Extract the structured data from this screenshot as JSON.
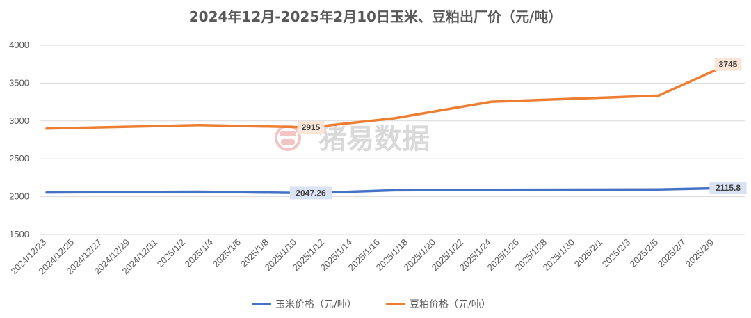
{
  "chart_data": {
    "type": "line",
    "title": "2024年12月-2025年2月10日玉米、豆粕出厂价（元/吨）",
    "xlabel": "",
    "ylabel": "",
    "ylim": [
      1500,
      4000
    ],
    "yticks": [
      1500,
      2000,
      2500,
      3000,
      3500,
      4000
    ],
    "grid": true,
    "legend_position": "bottom",
    "categories": [
      "2024/12/23",
      "2024/12/25",
      "2024/12/27",
      "2024/12/29",
      "2024/12/31",
      "2025/1/2",
      "2025/1/4",
      "2025/1/6",
      "2025/1/8",
      "2025/1/10",
      "2025/1/12",
      "2025/1/14",
      "2025/1/16",
      "2025/1/18",
      "2025/1/20",
      "2025/1/22",
      "2025/1/24",
      "2025/1/26",
      "2025/1/28",
      "2025/1/30",
      "2025/2/1",
      "2025/2/3",
      "2025/2/5",
      "2025/2/7",
      "2025/2/9"
    ],
    "series": [
      {
        "name": "玉米价格（元/吨）",
        "color": "#4472c4",
        "points": [
          {
            "x": "2024/12/23",
            "y": 2055
          },
          {
            "x": "2025/1/3",
            "y": 2065
          },
          {
            "x": "2025/1/11",
            "y": 2047.26
          },
          {
            "x": "2025/1/17",
            "y": 2085
          },
          {
            "x": "2025/1/24",
            "y": 2090
          },
          {
            "x": "2025/2/5",
            "y": 2095
          },
          {
            "x": "2025/2/10",
            "y": 2115.8
          }
        ]
      },
      {
        "name": "豆粕价格（元/吨）",
        "color": "#ed7d31",
        "points": [
          {
            "x": "2024/12/23",
            "y": 2900
          },
          {
            "x": "2025/1/3",
            "y": 2945
          },
          {
            "x": "2025/1/11",
            "y": 2915
          },
          {
            "x": "2025/1/17",
            "y": 3035
          },
          {
            "x": "2025/1/24",
            "y": 3255
          },
          {
            "x": "2025/2/5",
            "y": 3335
          },
          {
            "x": "2025/2/10",
            "y": 3745
          }
        ]
      }
    ],
    "data_labels": [
      {
        "series": 0,
        "x": "2025/1/11",
        "text": "2047.26"
      },
      {
        "series": 0,
        "x": "2025/2/10",
        "text": "2115.8"
      },
      {
        "series": 1,
        "x": "2025/1/11",
        "text": "2915"
      },
      {
        "series": 1,
        "x": "2025/2/10",
        "text": "3745"
      }
    ],
    "watermark": "猪易数据"
  }
}
